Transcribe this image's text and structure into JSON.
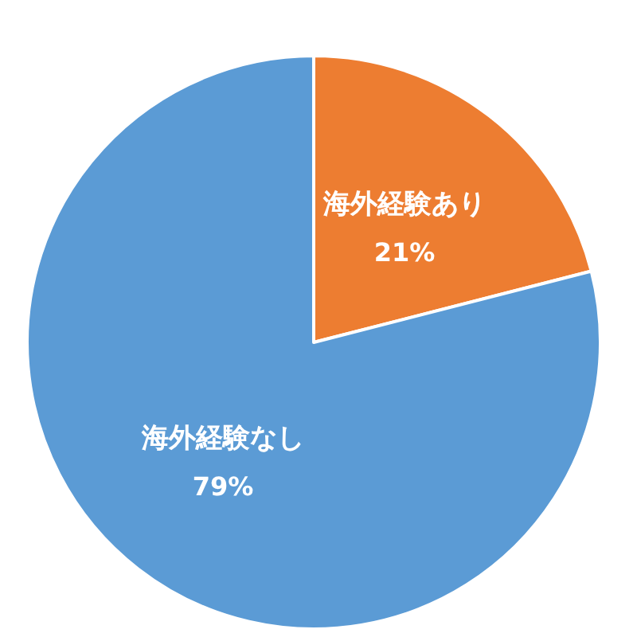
{
  "chart_data": {
    "type": "pie",
    "categories": [
      "海外経験あり",
      "海外経験なし"
    ],
    "values": [
      21,
      79
    ],
    "value_labels": [
      "21%",
      "79%"
    ],
    "colors": [
      "#ed7d31",
      "#5b9bd5"
    ]
  }
}
